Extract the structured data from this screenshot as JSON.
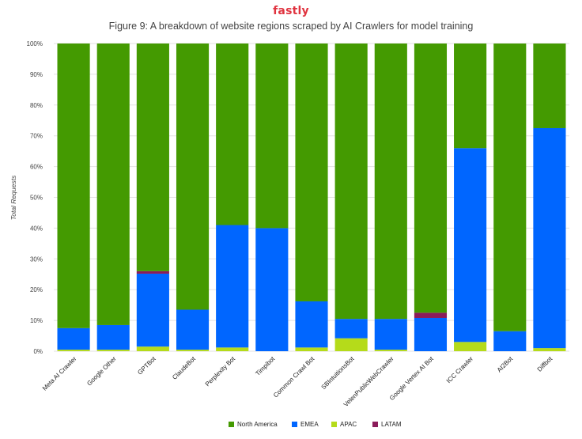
{
  "brand": "fastly",
  "chart_data": {
    "type": "bar",
    "stacked": true,
    "title": "Figure 9: A breakdown of website regions scraped by AI Crawlers for model training",
    "ylabel": "Total Requests",
    "xlabel": "",
    "ylim": [
      0,
      100
    ],
    "yticks": [
      "0%",
      "10%",
      "20%",
      "30%",
      "40%",
      "50%",
      "60%",
      "70%",
      "80%",
      "90%",
      "100%"
    ],
    "grid": true,
    "legend_position": "bottom",
    "categories": [
      "Meta AI Crawler",
      "Google Other",
      "GPTBot",
      "ClaudeBot",
      "Perplexity Bot",
      "Timpibot",
      "Common Crawl Bot",
      "SBIntuitionsBot",
      "VelenPublicWebCrawler",
      "Google Vertex AI Bot",
      "ICC Crawler",
      "AI2Bot",
      "Diffbot"
    ],
    "series": [
      {
        "name": "APAC",
        "color": "#b5db1a",
        "values": [
          0.5,
          0.5,
          1.5,
          0.5,
          1.2,
          0.0,
          1.2,
          4.2,
          0.5,
          0.0,
          3.0,
          0.0,
          1.0
        ]
      },
      {
        "name": "EMEA",
        "color": "#0066ff",
        "values": [
          7.0,
          8.0,
          23.7,
          13.0,
          39.8,
          40.0,
          15.0,
          6.3,
          10.0,
          10.8,
          63.0,
          6.5,
          71.5
        ]
      },
      {
        "name": "LATAM",
        "color": "#8b1c5a",
        "values": [
          0.0,
          0.0,
          0.8,
          0.0,
          0.0,
          0.0,
          0.0,
          0.0,
          0.0,
          1.7,
          0.0,
          0.0,
          0.0
        ]
      },
      {
        "name": "North America",
        "color": "#449a01",
        "values": [
          92.5,
          91.5,
          74.0,
          86.5,
          59.0,
          60.0,
          83.8,
          89.5,
          89.5,
          87.5,
          34.0,
          93.5,
          27.5
        ]
      }
    ],
    "legend_order": [
      "North America",
      "EMEA",
      "APAC",
      "LATAM"
    ]
  }
}
